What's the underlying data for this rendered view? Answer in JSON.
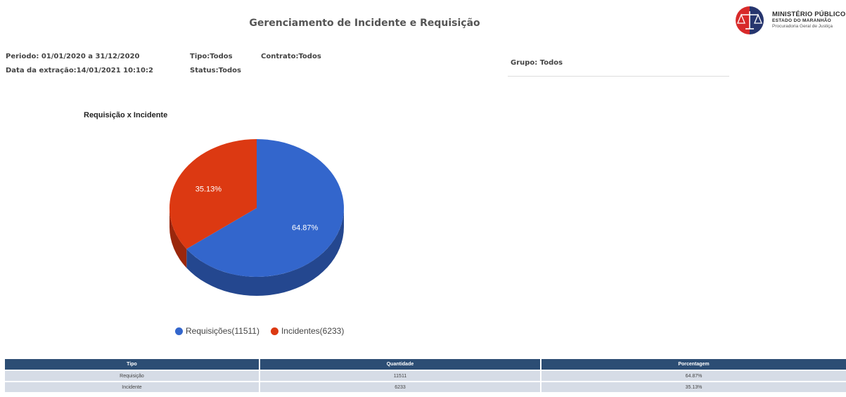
{
  "header": {
    "title": "Gerenciamento de Incidente e Requisição",
    "logo": {
      "line1": "MINISTÉRIO PÚBLICO",
      "line2": "ESTADO DO MARANHÃO",
      "line3": "Procuradoria Geral de Justiça"
    }
  },
  "filters": {
    "periodo": "Periodo: 01/01/2020 a 31/12/2020",
    "extracao": "Data da extração:14/01/2021 10:10:2",
    "tipo": "Tipo:Todos",
    "status": "Status:Todos",
    "contrato": "Contrato:Todos",
    "grupo": "Grupo: Todos"
  },
  "chart_data": {
    "type": "pie",
    "title": "Requisição x Incidente",
    "categories": [
      "Requisições(11511)",
      "Incidentes(6233)"
    ],
    "values": [
      11511,
      6233
    ],
    "percent_labels": [
      "64.87%",
      "35.13%"
    ],
    "colors": [
      "#3366cc",
      "#dc3912"
    ],
    "shade_colors": [
      "#24478f",
      "#9a270c"
    ],
    "legend_position": "bottom",
    "style": "3d"
  },
  "table": {
    "headers": [
      "Tipo",
      "Quantidade",
      "Porcentagem"
    ],
    "rows": [
      [
        "Requisição",
        "11511",
        "64.87%"
      ],
      [
        "Incidente",
        "6233",
        "35.13%"
      ]
    ]
  }
}
